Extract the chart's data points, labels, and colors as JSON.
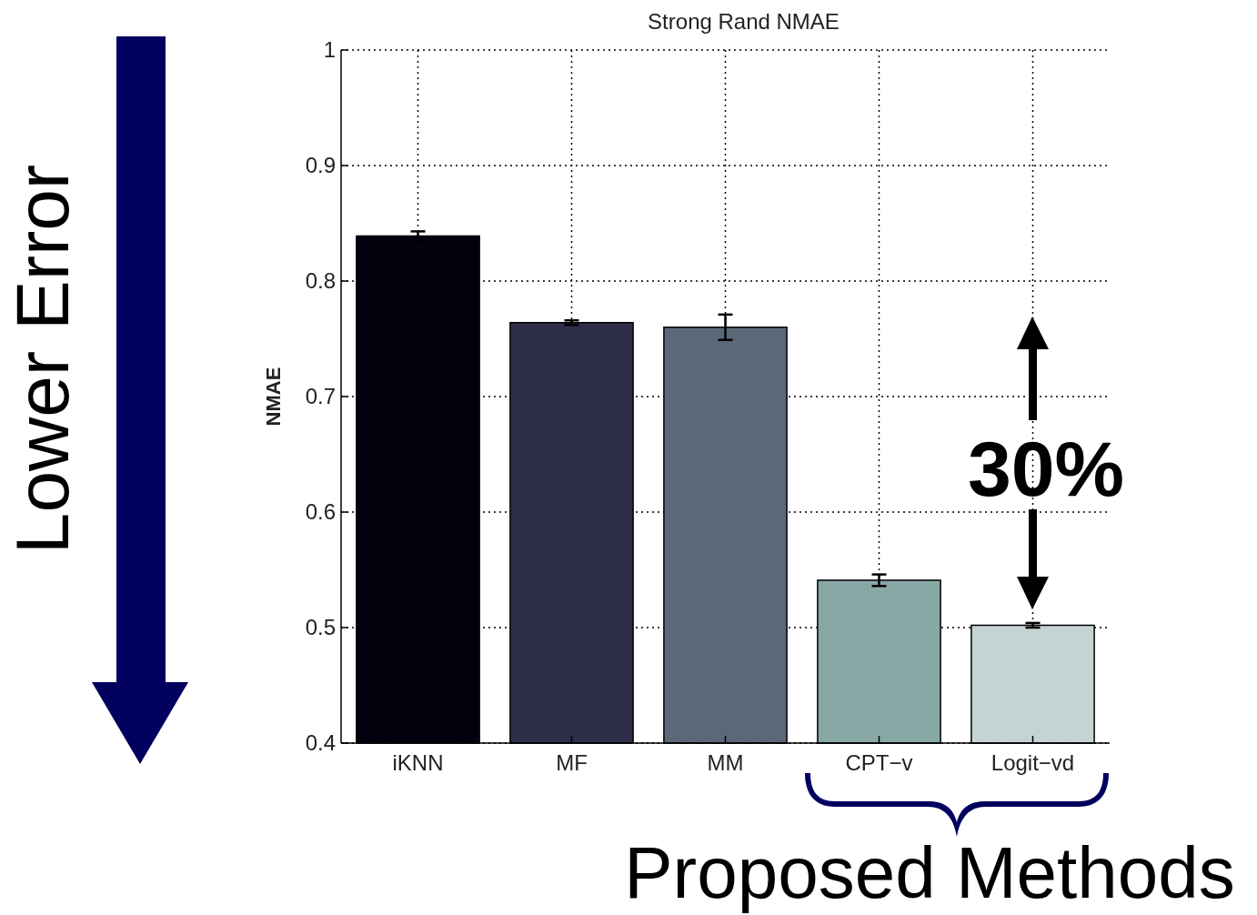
{
  "chart_data": {
    "type": "bar",
    "title": "Strong Rand NMAE",
    "ylabel": "NMAE",
    "categories": [
      "iKNN",
      "MF",
      "MM",
      "CPT−v",
      "Logit−vd"
    ],
    "values": [
      0.839,
      0.764,
      0.76,
      0.541,
      0.502
    ],
    "colors": [
      "#02020f",
      "#2e2e4b",
      "#5a6878",
      "#87a8a5",
      "#c5d3d3"
    ],
    "errors": [
      0.004,
      0.002,
      0.011,
      0.005,
      0.002
    ],
    "ylim": [
      0.4,
      1
    ],
    "yticks": [
      0.4,
      0.5,
      0.6,
      0.7,
      0.8,
      0.9,
      1
    ],
    "grid": true,
    "annotations": [
      "Lower Error",
      "30%",
      "Proposed Methods"
    ]
  }
}
